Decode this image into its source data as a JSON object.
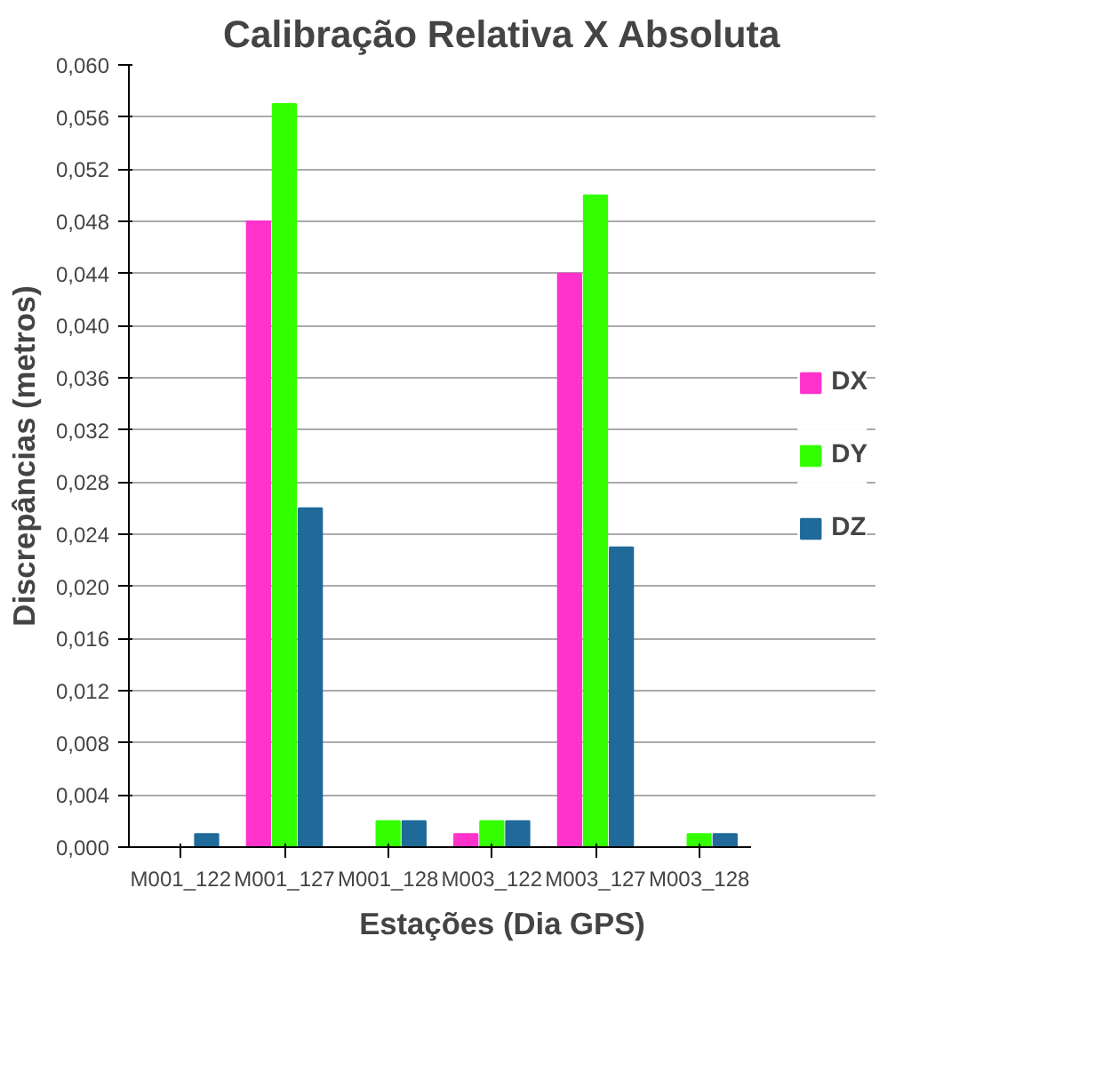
{
  "chart_data": {
    "type": "bar",
    "title": "Calibração Relativa X Absoluta",
    "xlabel": "Estações (Dia GPS)",
    "ylabel": "Discrepâncias (metros)",
    "categories": [
      "M001_122",
      "M001_127",
      "M001_128",
      "M003_122",
      "M003_127",
      "M003_128"
    ],
    "series": [
      {
        "name": "DX",
        "color": "#ff33cc",
        "values": [
          0,
          0.048,
          0,
          0.001,
          0.044,
          0
        ]
      },
      {
        "name": "DY",
        "color": "#33ff00",
        "values": [
          0,
          0.057,
          0.002,
          0.002,
          0.05,
          0.001
        ]
      },
      {
        "name": "DZ",
        "color": "#1f6a99",
        "values": [
          0.001,
          0.026,
          0.002,
          0.002,
          0.023,
          0.001
        ]
      }
    ],
    "ylim": [
      0,
      0.06
    ],
    "yticks": [
      {
        "value": 0,
        "label": "0,000"
      },
      {
        "value": 0.004,
        "label": "0,004"
      },
      {
        "value": 0.008,
        "label": "0,008"
      },
      {
        "value": 0.012,
        "label": "0,012"
      },
      {
        "value": 0.016,
        "label": "0,016"
      },
      {
        "value": 0.02,
        "label": "0,020"
      },
      {
        "value": 0.024,
        "label": "0,024"
      },
      {
        "value": 0.028,
        "label": "0,028"
      },
      {
        "value": 0.032,
        "label": "0,032"
      },
      {
        "value": 0.036,
        "label": "0,036"
      },
      {
        "value": 0.04,
        "label": "0,040"
      },
      {
        "value": 0.044,
        "label": "0,044"
      },
      {
        "value": 0.048,
        "label": "0,048"
      },
      {
        "value": 0.052,
        "label": "0,052"
      },
      {
        "value": 0.056,
        "label": "0,056"
      },
      {
        "value": 0.06,
        "label": "0,060"
      }
    ],
    "grid": "y",
    "legend": "right"
  }
}
